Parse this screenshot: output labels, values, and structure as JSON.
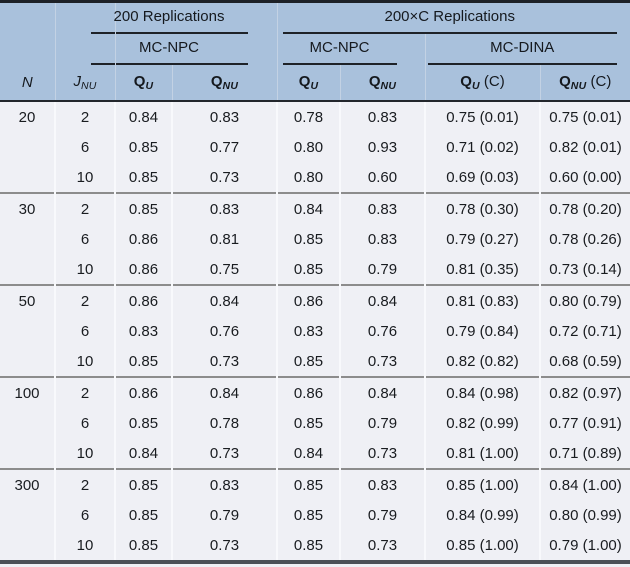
{
  "table": {
    "col_groups": {
      "rep200": "200 Replications",
      "rep200c": "200×C Replications"
    },
    "methods": {
      "m1": "MC-NPC",
      "m2": "MC-NPC",
      "m3": "MC-DINA"
    },
    "columns": {
      "n": "N",
      "j_base": "J",
      "j_sub": "NU",
      "qu_base": "Q",
      "qu_sub": "U",
      "qnu_base": "Q",
      "qnu_sub": "NU",
      "quc_base": "Q",
      "quc_sub": "U",
      "quc_suffix": " (C)",
      "qnuc_base": "Q",
      "qnuc_sub": "NU",
      "qnuc_suffix": " (C)"
    },
    "groups": [
      {
        "n": "20",
        "rows": [
          {
            "j": "2",
            "values": [
              "0.84",
              "0.83",
              "0.78",
              "0.83",
              "0.75 (0.01)",
              "0.75 (0.01)"
            ]
          },
          {
            "j": "6",
            "values": [
              "0.85",
              "0.77",
              "0.80",
              "0.93",
              "0.71 (0.02)",
              "0.82 (0.01)"
            ]
          },
          {
            "j": "10",
            "values": [
              "0.85",
              "0.73",
              "0.80",
              "0.60",
              "0.69 (0.03)",
              "0.60 (0.00)"
            ]
          }
        ]
      },
      {
        "n": "30",
        "rows": [
          {
            "j": "2",
            "values": [
              "0.85",
              "0.83",
              "0.84",
              "0.83",
              "0.78 (0.30)",
              "0.78 (0.20)"
            ]
          },
          {
            "j": "6",
            "values": [
              "0.86",
              "0.81",
              "0.85",
              "0.83",
              "0.79 (0.27)",
              "0.78 (0.26)"
            ]
          },
          {
            "j": "10",
            "values": [
              "0.86",
              "0.75",
              "0.85",
              "0.79",
              "0.81 (0.35)",
              "0.73 (0.14)"
            ]
          }
        ]
      },
      {
        "n": "50",
        "rows": [
          {
            "j": "2",
            "values": [
              "0.86",
              "0.84",
              "0.86",
              "0.84",
              "0.81 (0.83)",
              "0.80 (0.79)"
            ]
          },
          {
            "j": "6",
            "values": [
              "0.83",
              "0.76",
              "0.83",
              "0.76",
              "0.79 (0.84)",
              "0.72 (0.71)"
            ]
          },
          {
            "j": "10",
            "values": [
              "0.85",
              "0.73",
              "0.85",
              "0.73",
              "0.82 (0.82)",
              "0.68 (0.59)"
            ]
          }
        ]
      },
      {
        "n": "100",
        "rows": [
          {
            "j": "2",
            "values": [
              "0.86",
              "0.84",
              "0.86",
              "0.84",
              "0.84 (0.98)",
              "0.82 (0.97)"
            ]
          },
          {
            "j": "6",
            "values": [
              "0.85",
              "0.78",
              "0.85",
              "0.79",
              "0.82 (0.99)",
              "0.77 (0.91)"
            ]
          },
          {
            "j": "10",
            "values": [
              "0.84",
              "0.73",
              "0.84",
              "0.73",
              "0.81 (1.00)",
              "0.71 (0.89)"
            ]
          }
        ]
      },
      {
        "n": "300",
        "rows": [
          {
            "j": "2",
            "values": [
              "0.85",
              "0.83",
              "0.85",
              "0.83",
              "0.85 (1.00)",
              "0.84 (1.00)"
            ]
          },
          {
            "j": "6",
            "values": [
              "0.85",
              "0.79",
              "0.85",
              "0.79",
              "0.84 (0.99)",
              "0.80 (0.99)"
            ]
          },
          {
            "j": "10",
            "values": [
              "0.85",
              "0.73",
              "0.85",
              "0.73",
              "0.85 (1.00)",
              "0.79 (1.00)"
            ]
          }
        ]
      }
    ],
    "colors": {
      "header_bg": "#a9c1dc",
      "body_bg": "#eff0f5",
      "top_border": "#1d2127",
      "header_rule": "#22262c",
      "group_rule": "#8c8c8c",
      "bottom_border": "#4b5057"
    }
  }
}
